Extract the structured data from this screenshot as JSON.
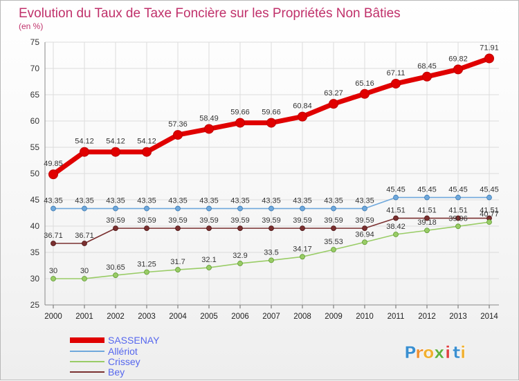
{
  "chart_data": {
    "type": "line",
    "title": "Evolution du Taux de Taxe Foncière sur les Propriétés Non Bâties",
    "subtitle": "(en %)",
    "x": [
      "2000",
      "2001",
      "2002",
      "2003",
      "2004",
      "2005",
      "2006",
      "2007",
      "2008",
      "2009",
      "2010",
      "2011",
      "2012",
      "2013",
      "2014"
    ],
    "ylim": [
      25,
      75
    ],
    "yticks": [
      25,
      30,
      35,
      40,
      45,
      50,
      55,
      60,
      65,
      70,
      75
    ],
    "grid": true,
    "legend_position": "bottom-left",
    "series": [
      {
        "name": "SASSENAY",
        "color": "#e00000",
        "labels": [
          "49.85",
          "54.12",
          "54.12",
          "54.12",
          "57.36",
          "58.49",
          "59.66",
          "59.66",
          "60.84",
          "63.27",
          "65.16",
          "67.11",
          "68.45",
          "69.82",
          "71.91"
        ],
        "values": [
          49.85,
          54.12,
          54.12,
          54.12,
          57.36,
          58.49,
          59.66,
          59.66,
          60.84,
          63.27,
          65.16,
          67.11,
          68.45,
          69.82,
          71.91
        ]
      },
      {
        "name": "Allériot",
        "color": "#6fa8dc",
        "labels": [
          "43.35",
          "43.35",
          "43.35",
          "43.35",
          "43.35",
          "43.35",
          "43.35",
          "43.35",
          "43.35",
          "43.35",
          "43.35",
          "45.45",
          "45.45",
          "45.45",
          "45.45"
        ],
        "values": [
          43.35,
          43.35,
          43.35,
          43.35,
          43.35,
          43.35,
          43.35,
          43.35,
          43.35,
          43.35,
          43.35,
          45.45,
          45.45,
          45.45,
          45.45
        ]
      },
      {
        "name": "Crissey",
        "color": "#99cc66",
        "labels": [
          "30",
          "30",
          "30.65",
          "31.25",
          "31.7",
          "32.1",
          "32.9",
          "33.5",
          "34.17",
          "35.53",
          "36.94",
          "38.42",
          "39.18",
          "39.96",
          "40.77"
        ],
        "values": [
          30,
          30,
          30.65,
          31.25,
          31.7,
          32.1,
          32.9,
          33.5,
          34.17,
          35.53,
          36.94,
          38.42,
          39.18,
          39.96,
          40.77
        ]
      },
      {
        "name": "Bey",
        "color": "#7a3030",
        "labels": [
          "36.71",
          "36.71",
          "39.59",
          "39.59",
          "39.59",
          "39.59",
          "39.59",
          "39.59",
          "39.59",
          "39.59",
          "39.59",
          "41.51",
          "41.51",
          "41.51",
          "41.51"
        ],
        "values": [
          36.71,
          36.71,
          39.59,
          39.59,
          39.59,
          39.59,
          39.59,
          39.59,
          39.59,
          39.59,
          39.59,
          41.51,
          41.51,
          41.51,
          41.51
        ]
      }
    ]
  },
  "brand": {
    "letters": [
      "P",
      "r",
      "o",
      "x",
      "i",
      "t",
      "i"
    ],
    "colors": [
      "#3a8fd0",
      "#f09030",
      "#f0b030",
      "#60b040",
      "#e04040",
      "#3a8fd0",
      "#f0b030"
    ]
  }
}
